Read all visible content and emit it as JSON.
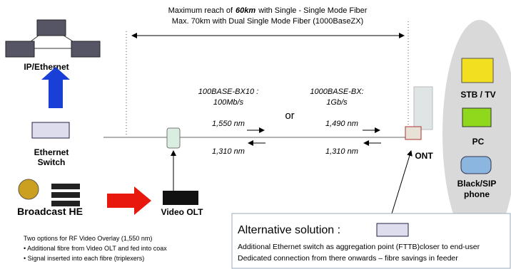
{
  "reach": {
    "prefix": "Maximum reach of",
    "distance": "60km",
    "suffix": "with Single - Single Mode Fiber",
    "dual": "Max. 70km with Dual Single Mode Fiber (1000BaseZX)"
  },
  "nodes": {
    "ip_ethernet": "IP/Ethernet",
    "switch": [
      "Ethernet",
      "Switch"
    ],
    "broadcast": "Broadcast HE",
    "video_olt": "Video OLT",
    "ont": "ONT"
  },
  "links": {
    "bx10": [
      "100BASE-BX10 :",
      "100Mb/s"
    ],
    "or": "or",
    "bx": [
      "1000BASE-BX:",
      "1Gb/s"
    ],
    "left": {
      "down": "1,550 nm",
      "up": "1,310 nm"
    },
    "right": {
      "down": "1,490 nm",
      "up": "1,310 nm"
    }
  },
  "devices": {
    "stb": "STB / TV",
    "pc": "PC",
    "phone": [
      "Black/SIP",
      "phone"
    ]
  },
  "notes": [
    "Two options for RF Video Overlay (1,550 nm)",
    "• Additional fibre from Video OLT and fed into coax",
    "• Signal inserted into each fibre (triplexers)"
  ],
  "alternative": {
    "title": "Alternative solution :",
    "lines": [
      "Additional Ethernet switch as aggregation point (FTTB)closer to end-user",
      "Dedicated connection from there onwards – fibre savings in feeder"
    ]
  }
}
